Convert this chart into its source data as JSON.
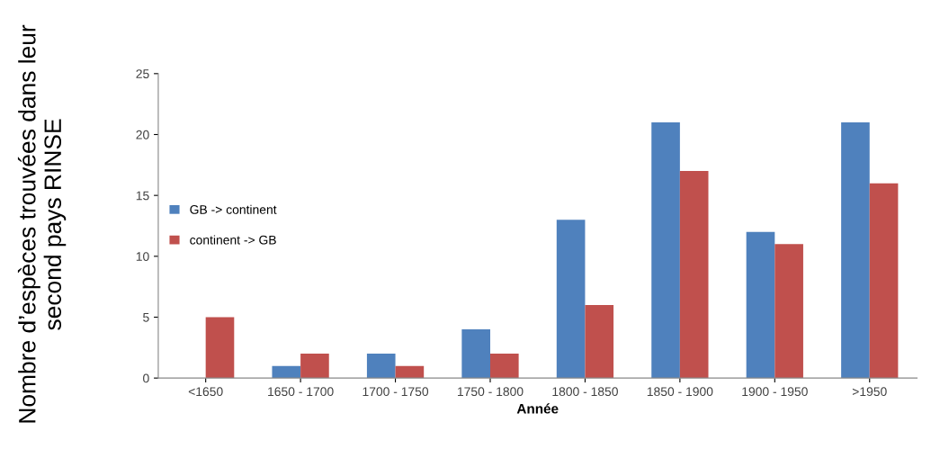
{
  "chart_data": {
    "type": "bar",
    "xlabel": "Année",
    "ylabel": "Nombre d’espèces trouvées dans leur\nsecond pays RINSE",
    "categories": [
      "<1650",
      "1650 - 1700",
      "1700 - 1750",
      "1750 - 1800",
      "1800 - 1850",
      "1850 - 1900",
      "1900 - 1950",
      ">1950"
    ],
    "series": [
      {
        "name": "GB -> continent",
        "color": "#4f81bd",
        "values": [
          0,
          1,
          2,
          4,
          13,
          21,
          12,
          21
        ]
      },
      {
        "name": "continent -> GB",
        "color": "#c0504d",
        "values": [
          5,
          2,
          1,
          2,
          6,
          17,
          11,
          16
        ]
      }
    ],
    "ylim": [
      0,
      25
    ],
    "yticks": [
      0,
      5,
      10,
      15,
      20,
      25
    ],
    "grid": false,
    "legend": "center left"
  }
}
